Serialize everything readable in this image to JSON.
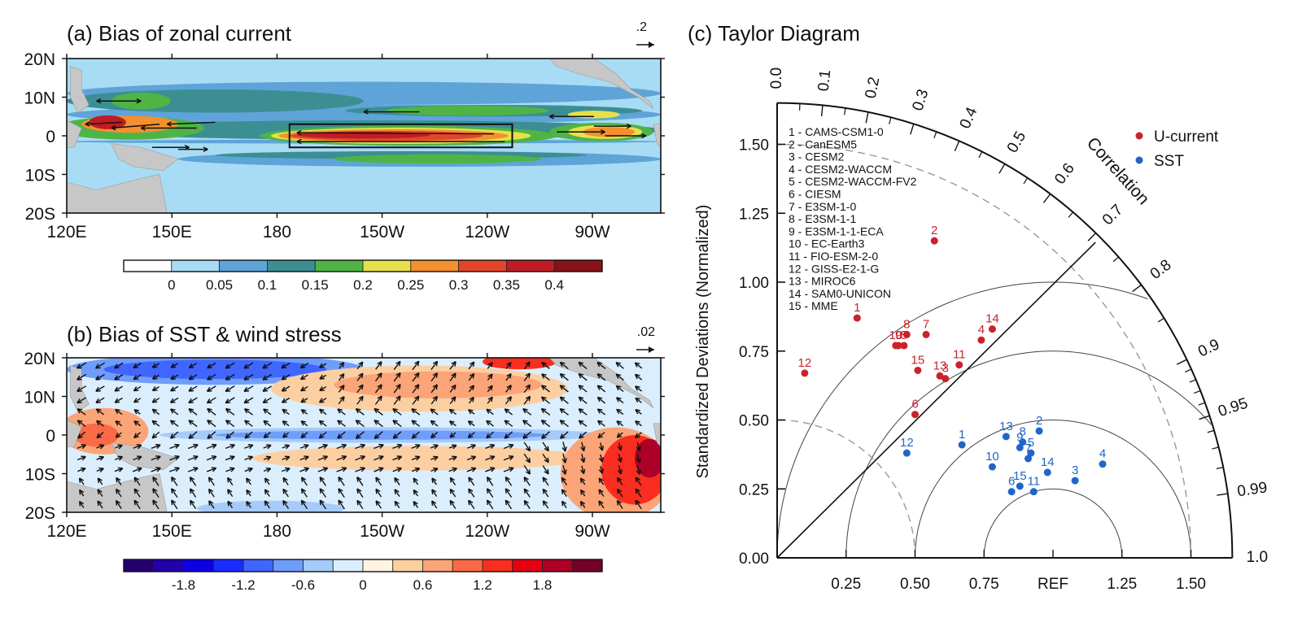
{
  "chart_data": [
    {
      "type": "heatmap",
      "id": "panel-a",
      "title": "(a) Bias of zonal current",
      "xticks": [
        "120E",
        "150E",
        "180",
        "150W",
        "120W",
        "90W"
      ],
      "yticks": [
        "20N",
        "10N",
        "0",
        "10S",
        "20S"
      ],
      "xrange_lon": [
        120,
        280
      ],
      "yrange_lat": [
        -20,
        20
      ],
      "vector_reference": ".2",
      "box_region": {
        "lon": [
          180,
          240
        ],
        "lat": [
          -3,
          3
        ]
      },
      "colorbar": {
        "ticks": [
          "0",
          "0.05",
          "0.1",
          "0.15",
          "0.2",
          "0.25",
          "0.3",
          "0.35",
          "0.4"
        ],
        "colors": [
          "#ffffff",
          "#a8dcf4",
          "#5fa4d8",
          "#3b8f93",
          "#4fb445",
          "#e6e04a",
          "#f4902e",
          "#e3452a",
          "#c01c24",
          "#881217"
        ]
      },
      "features": [
        {
          "name": "equatorial band 180-120W",
          "lat": [
            -2,
            2
          ],
          "lon": [
            180,
            240
          ],
          "level": 0.38
        },
        {
          "name": "western warm core",
          "lat": [
            1,
            5
          ],
          "lon": [
            126,
            150
          ],
          "level": 0.36
        },
        {
          "name": "eastern core near 95W",
          "lat": [
            -1,
            3
          ],
          "lon": [
            250,
            275
          ],
          "level": 0.28
        },
        {
          "name": "NECC band",
          "lat": [
            5,
            8
          ],
          "lon": [
            200,
            270
          ],
          "level": 0.18
        }
      ]
    },
    {
      "type": "heatmap",
      "id": "panel-b",
      "title": "(b) Bias of SST & wind stress",
      "xticks": [
        "120E",
        "150E",
        "180",
        "150W",
        "120W",
        "90W"
      ],
      "yticks": [
        "20N",
        "10N",
        "0",
        "10S",
        "20S"
      ],
      "xrange_lon": [
        120,
        280
      ],
      "yrange_lat": [
        -20,
        20
      ],
      "vector_reference": ".02",
      "colorbar": {
        "ticks": [
          "-1.8",
          "-1.2",
          "-0.6",
          "0",
          "0.6",
          "1.2",
          "1.8"
        ],
        "colors": [
          "#24006e",
          "#2200aa",
          "#0d00e4",
          "#1a2cff",
          "#4066ff",
          "#6f9dfa",
          "#a6cbfa",
          "#dbeefd",
          "#fff3e2",
          "#fccfa2",
          "#fba477",
          "#fb6a46",
          "#f92e20",
          "#e50012",
          "#ad0026",
          "#760027"
        ]
      },
      "features": [
        {
          "name": "equatorial cold tongue",
          "lat": [
            -2,
            2
          ],
          "lon": [
            160,
            260
          ],
          "level": -0.9
        },
        {
          "name": "north subtropical cold",
          "lat": [
            14,
            20
          ],
          "lon": [
            125,
            190
          ],
          "level": -0.9
        },
        {
          "name": "south-east warm bias",
          "lat": [
            -20,
            -2
          ],
          "lon": [
            250,
            280
          ],
          "level": 2.0
        },
        {
          "name": "north warm band",
          "lat": [
            8,
            20
          ],
          "lon": [
            190,
            250
          ],
          "level": 0.9
        },
        {
          "name": "maritime continent warm",
          "lat": [
            -5,
            4
          ],
          "lon": [
            120,
            135
          ],
          "level": 1.0
        },
        {
          "name": "south warm band",
          "lat": [
            -10,
            -4
          ],
          "lon": [
            180,
            260
          ],
          "level": 0.7
        }
      ]
    },
    {
      "type": "scatter",
      "id": "panel-c",
      "subtype": "taylor",
      "title": "(c) Taylor Diagram",
      "ylabel": "Standardized Deviations (Normalized)",
      "angular_label": "Correlation",
      "std_ticks": [
        "0.00",
        "0.25",
        "0.50",
        "0.75",
        "1.00",
        "1.25",
        "1.50"
      ],
      "x_ticks": [
        "0.25",
        "0.50",
        "0.75",
        "REF",
        "1.25",
        "1.50"
      ],
      "corr_ticks": [
        "0.0",
        "0.1",
        "0.2",
        "0.3",
        "0.4",
        "0.5",
        "0.6",
        "0.7",
        "0.8",
        "0.9",
        "0.95",
        "0.99",
        "1.0"
      ],
      "std_max": 1.65,
      "rmsd_arcs": [
        0.25,
        0.5,
        0.75,
        1.0
      ],
      "dashed_std_arcs": [
        0.5,
        1.5
      ],
      "reference_correlation_line": 0.71,
      "legend": [
        {
          "name": "U-current",
          "color": "#c8232c"
        },
        {
          "name": "SST",
          "color": "#1f66c8"
        }
      ],
      "models": [
        "1 - CAMS-CSM1-0",
        "2 - CanESM5",
        "3 - CESM2",
        "4 - CESM2-WACCM",
        "5 - CESM2-WACCM-FV2",
        "6 - CIESM",
        "7 - E3SM-1-0",
        "8 - E3SM-1-1",
        "9 - E3SM-1-1-ECA",
        "10 - EC-Earth3",
        "11 - FIO-ESM-2-0",
        "12 - GISS-E2-1-G",
        "13 - MIROC6",
        "14 - SAM0-UNICON",
        "15 - MME"
      ],
      "series": [
        {
          "name": "U-current",
          "points": [
            {
              "id": "1",
              "x": 0.29,
              "y": 0.87
            },
            {
              "id": "2",
              "x": 0.57,
              "y": 1.15
            },
            {
              "id": "3",
              "x": 0.61,
              "y": 0.65
            },
            {
              "id": "4",
              "x": 0.74,
              "y": 0.79
            },
            {
              "id": "5",
              "x": 0.46,
              "y": 0.77
            },
            {
              "id": "6",
              "x": 0.5,
              "y": 0.52
            },
            {
              "id": "7",
              "x": 0.54,
              "y": 0.81
            },
            {
              "id": "8",
              "x": 0.47,
              "y": 0.81
            },
            {
              "id": "9",
              "x": 0.44,
              "y": 0.77
            },
            {
              "id": "10",
              "x": 0.43,
              "y": 0.77
            },
            {
              "id": "11",
              "x": 0.66,
              "y": 0.7
            },
            {
              "id": "12",
              "x": 0.1,
              "y": 0.67
            },
            {
              "id": "13",
              "x": 0.59,
              "y": 0.66
            },
            {
              "id": "14",
              "x": 0.78,
              "y": 0.83
            },
            {
              "id": "15",
              "x": 0.51,
              "y": 0.68
            }
          ]
        },
        {
          "name": "SST",
          "points": [
            {
              "id": "1",
              "x": 0.67,
              "y": 0.41
            },
            {
              "id": "2",
              "x": 0.95,
              "y": 0.46
            },
            {
              "id": "3",
              "x": 1.08,
              "y": 0.28
            },
            {
              "id": "4",
              "x": 1.18,
              "y": 0.34
            },
            {
              "id": "5",
              "x": 0.92,
              "y": 0.38
            },
            {
              "id": "6",
              "x": 0.85,
              "y": 0.24
            },
            {
              "id": "7",
              "x": 0.91,
              "y": 0.36
            },
            {
              "id": "8",
              "x": 0.89,
              "y": 0.42
            },
            {
              "id": "9",
              "x": 0.88,
              "y": 0.4
            },
            {
              "id": "10",
              "x": 0.78,
              "y": 0.33
            },
            {
              "id": "11",
              "x": 0.93,
              "y": 0.24
            },
            {
              "id": "12",
              "x": 0.47,
              "y": 0.38
            },
            {
              "id": "13",
              "x": 0.83,
              "y": 0.44
            },
            {
              "id": "14",
              "x": 0.98,
              "y": 0.31
            },
            {
              "id": "15",
              "x": 0.88,
              "y": 0.26
            }
          ]
        }
      ]
    }
  ]
}
